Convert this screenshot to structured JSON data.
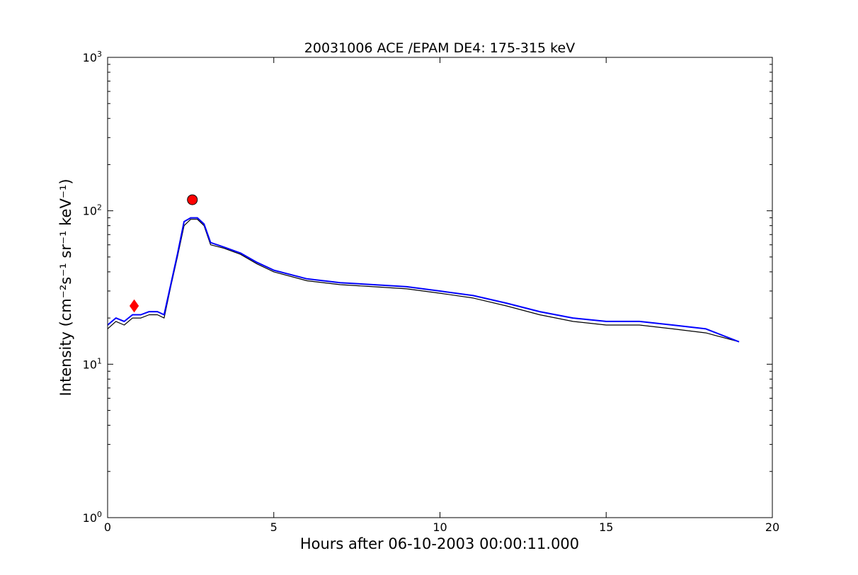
{
  "chart_data": {
    "type": "line",
    "title": "20031006 ACE /EPAM DE4: 175-315 keV",
    "xlabel": "Hours after 06-10-2003 00:00:11.000",
    "ylabel": "Intensity (cm⁻²s⁻¹ sr⁻¹ keV⁻¹)",
    "xlim": [
      0,
      20
    ],
    "ylim": [
      1,
      1000
    ],
    "yscale": "log",
    "x_ticks": [
      0,
      5,
      10,
      15,
      20
    ],
    "x_tick_labels": [
      "0",
      "5",
      "10",
      "15",
      "20"
    ],
    "y_ticks": [
      1,
      10,
      100,
      1000
    ],
    "y_tick_labels": [
      "10",
      "10",
      "10",
      "10"
    ],
    "y_tick_exponents": [
      "0",
      "1",
      "2",
      "3"
    ],
    "grid": false,
    "series": [
      {
        "color": "#000000",
        "x": [
          0.0,
          0.25,
          0.5,
          0.75,
          1.0,
          1.25,
          1.5,
          1.7,
          1.9,
          2.1,
          2.3,
          2.5,
          2.7,
          2.9,
          3.1,
          3.5,
          4.0,
          4.5,
          5.0,
          6.0,
          7.0,
          8.0,
          9.0,
          10.0,
          11.0,
          12.0,
          13.0,
          14.0,
          15.0,
          16.0,
          17.0,
          18.0,
          19.0
        ],
        "y": [
          17,
          19,
          18,
          20,
          20,
          21,
          21,
          20,
          32,
          50,
          80,
          88,
          88,
          80,
          60,
          57,
          52,
          45,
          40,
          35,
          33,
          32,
          31,
          29,
          27,
          24,
          21,
          19,
          18,
          18,
          17,
          16,
          14
        ]
      },
      {
        "color": "#0000ff",
        "x": [
          0.0,
          0.25,
          0.5,
          0.75,
          1.0,
          1.25,
          1.5,
          1.7,
          1.9,
          2.1,
          2.3,
          2.5,
          2.7,
          2.9,
          3.1,
          3.5,
          4.0,
          4.5,
          5.0,
          6.0,
          7.0,
          8.0,
          9.0,
          10.0,
          11.0,
          12.0,
          13.0,
          14.0,
          15.0,
          16.0,
          17.0,
          18.0,
          19.0
        ],
        "y": [
          18,
          20,
          19,
          21,
          21,
          22,
          22,
          21,
          33,
          52,
          85,
          90,
          90,
          82,
          62,
          58,
          53,
          46,
          41,
          36,
          34,
          33,
          32,
          30,
          28,
          25,
          22,
          20,
          19,
          19,
          18,
          17,
          14
        ]
      }
    ],
    "markers": [
      {
        "shape": "diamond",
        "color": "#ff0000",
        "x": 0.8,
        "y": 24
      },
      {
        "shape": "circle",
        "color": "#ff0000",
        "x": 2.55,
        "y": 118
      }
    ]
  }
}
